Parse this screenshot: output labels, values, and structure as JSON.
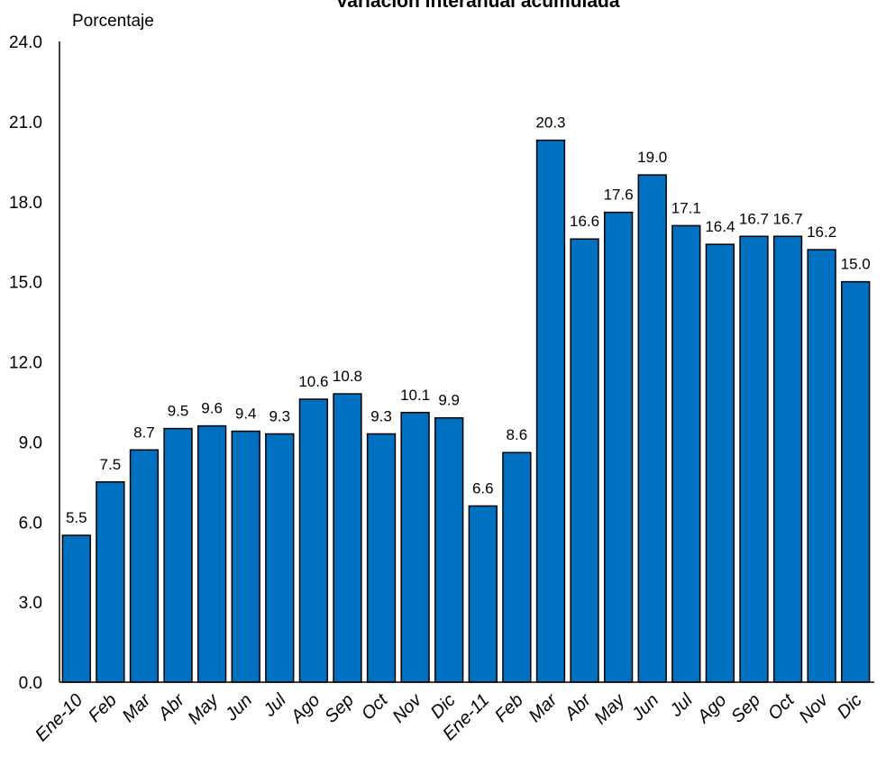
{
  "chart_data": {
    "type": "bar",
    "title": "Variación interanual acumulada",
    "ylabel": "Porcentaje",
    "xlabel": "",
    "ylim": [
      0,
      24
    ],
    "yticks": [
      "0.0",
      "3.0",
      "6.0",
      "9.0",
      "12.0",
      "15.0",
      "18.0",
      "21.0",
      "24.0"
    ],
    "categories": [
      "Ene-10",
      "Feb",
      "Mar",
      "Abr",
      "May",
      "Jun",
      "Jul",
      "Ago",
      "Sep",
      "Oct",
      "Nov",
      "Dic",
      "Ene-11",
      "Feb",
      "Mar",
      "Abr",
      "May",
      "Jun",
      "Jul",
      "Ago",
      "Sep",
      "Oct",
      "Nov",
      "Dic"
    ],
    "values": [
      5.5,
      7.5,
      8.7,
      9.5,
      9.6,
      9.4,
      9.3,
      10.6,
      10.8,
      9.3,
      10.1,
      9.9,
      6.6,
      8.6,
      20.3,
      16.6,
      17.6,
      19.0,
      17.1,
      16.4,
      16.7,
      16.7,
      16.2,
      15.0
    ],
    "value_labels": [
      "5.5",
      "7.5",
      "8.7",
      "9.5",
      "9.6",
      "9.4",
      "9.3",
      "10.6",
      "10.8",
      "9.3",
      "10.1",
      "9.9",
      "6.6",
      "8.6",
      "20.3",
      "16.6",
      "17.6",
      "19.0",
      "17.1",
      "16.4",
      "16.7",
      "16.7",
      "16.2",
      "15.0"
    ],
    "grid": false,
    "legend": "none",
    "bar_color": "#0070C0"
  }
}
